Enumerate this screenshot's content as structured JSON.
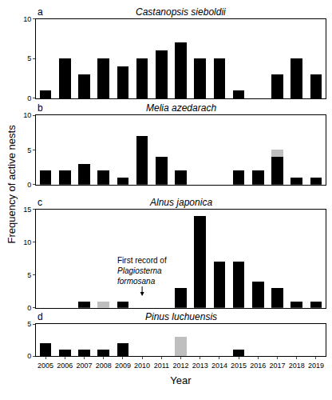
{
  "chart_data": {
    "type": "bar",
    "xlabel": "Year",
    "ylabel": "Frequency of active nests",
    "stacked": true,
    "grid": false,
    "categories": [
      "2005",
      "2006",
      "2007",
      "2008",
      "2009",
      "2010",
      "2011",
      "2012",
      "2013",
      "2014",
      "2015",
      "2016",
      "2017",
      "2018",
      "2019"
    ],
    "panels": [
      {
        "label": "a",
        "title": "Castanopsis sieboldii",
        "ylim": [
          0,
          10
        ],
        "yticks": [
          0,
          5,
          10
        ],
        "series": [
          {
            "color": "#000000",
            "values": [
              1,
              5,
              3,
              5,
              4,
              5,
              6,
              7,
              5,
              5,
              1,
              0,
              3,
              5,
              3
            ]
          }
        ]
      },
      {
        "label": "b",
        "title": "Melia azedarach",
        "ylim": [
          0,
          10
        ],
        "yticks": [
          0,
          5,
          10
        ],
        "series": [
          {
            "color": "#000000",
            "values": [
              2,
              2,
              3,
              2,
              1,
              7,
              4,
              2,
              0,
              0,
              2,
              2,
              4,
              1,
              1
            ]
          },
          {
            "color": "#bfbfbf",
            "values": [
              0,
              0,
              0,
              0,
              0,
              0,
              0,
              0,
              0,
              0,
              0,
              0,
              1,
              0,
              0
            ]
          }
        ]
      },
      {
        "label": "c",
        "title": "Alnus japonica",
        "ylim": [
          0,
          15
        ],
        "yticks": [
          0,
          5,
          10,
          15
        ],
        "series": [
          {
            "color": "#000000",
            "values": [
              0,
              0,
              1,
              0,
              1,
              0,
              0,
              3,
              14,
              7,
              7,
              4,
              3,
              1,
              1
            ]
          },
          {
            "color": "#bfbfbf",
            "values": [
              0,
              0,
              0,
              1,
              0,
              0,
              0,
              0,
              0,
              0,
              0,
              0,
              0,
              0,
              0
            ]
          }
        ]
      },
      {
        "label": "d",
        "title": "Pinus luchuensis",
        "ylim": [
          0,
          5
        ],
        "yticks": [
          0,
          5
        ],
        "series": [
          {
            "color": "#000000",
            "values": [
              2,
              1,
              1,
              1,
              2,
              0,
              0,
              0,
              0,
              0,
              1,
              0,
              0,
              0,
              0
            ]
          },
          {
            "color": "#bfbfbf",
            "values": [
              0,
              0,
              0,
              0,
              0,
              0,
              0,
              3,
              0,
              0,
              0,
              0,
              0,
              0,
              0
            ]
          }
        ]
      }
    ],
    "annotations": [
      {
        "panel": "c",
        "category": "2010",
        "lines": [
          "First record of",
          "Plagiosterna",
          "formosana"
        ]
      }
    ]
  }
}
